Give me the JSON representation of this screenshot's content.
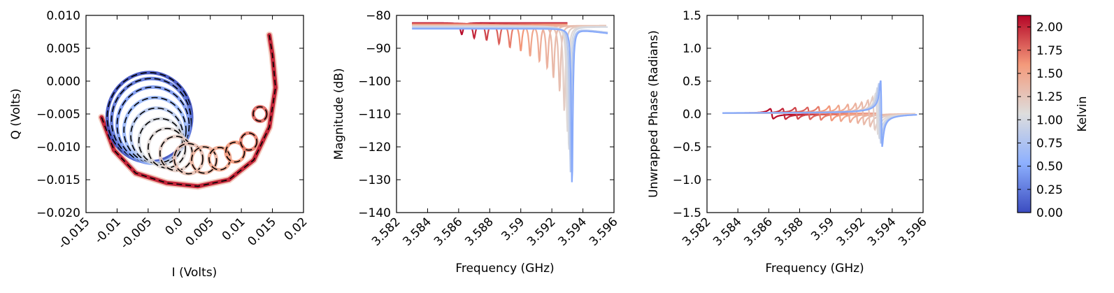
{
  "chart_data": [
    {
      "type": "scatter",
      "subtype": "iq-resonance-circles",
      "xlabel": "I (Volts)",
      "ylabel": "Q (Volts)",
      "xlim": [
        -0.015,
        0.02
      ],
      "ylim": [
        -0.02,
        0.01
      ],
      "xticks": [
        -0.015,
        -0.01,
        -0.005,
        0.0,
        0.005,
        0.01,
        0.015,
        0.02
      ],
      "xtick_labels": [
        "-0.015",
        "-0.01",
        "-0.005",
        "0.0",
        "0.005",
        "0.01",
        "0.015",
        "0.02"
      ],
      "yticks": [
        -0.02,
        -0.015,
        -0.01,
        -0.005,
        0.0,
        0.005,
        0.01
      ],
      "ytick_labels": [
        "−0.020",
        "−0.015",
        "−0.010",
        "−0.005",
        "0.000",
        "0.005",
        "0.010"
      ],
      "circles": [
        {
          "cx": -0.0048,
          "cy": -0.0055,
          "r": 0.0068,
          "t": 0.0
        },
        {
          "cx": -0.0045,
          "cy": -0.006,
          "r": 0.0064,
          "t": 0.2
        },
        {
          "cx": -0.0042,
          "cy": -0.0067,
          "r": 0.0058,
          "t": 0.4
        },
        {
          "cx": -0.0039,
          "cy": -0.0075,
          "r": 0.005,
          "t": 0.6
        },
        {
          "cx": -0.0036,
          "cy": -0.0083,
          "r": 0.0042,
          "t": 0.8
        },
        {
          "cx": -0.003,
          "cy": -0.0092,
          "r": 0.0035,
          "t": 1.0
        },
        {
          "cx": -0.002,
          "cy": -0.0102,
          "r": 0.003,
          "t": 1.1
        },
        {
          "cx": -0.0005,
          "cy": -0.011,
          "r": 0.0026,
          "t": 1.2
        },
        {
          "cx": 0.0015,
          "cy": -0.0118,
          "r": 0.0023,
          "t": 1.3
        },
        {
          "cx": 0.004,
          "cy": -0.012,
          "r": 0.002,
          "t": 1.4
        },
        {
          "cx": 0.0065,
          "cy": -0.0118,
          "r": 0.0017,
          "t": 1.5
        },
        {
          "cx": 0.009,
          "cy": -0.0108,
          "r": 0.0015,
          "t": 1.6
        },
        {
          "cx": 0.0112,
          "cy": -0.0092,
          "r": 0.0013,
          "t": 1.7
        },
        {
          "cx": 0.013,
          "cy": -0.005,
          "r": 0.0011,
          "t": 1.8
        }
      ],
      "spiral_arc": [
        [
          -0.0125,
          -0.0055
        ],
        [
          -0.0105,
          -0.0105
        ],
        [
          -0.007,
          -0.014
        ],
        [
          -0.002,
          -0.0155
        ],
        [
          0.003,
          -0.016
        ],
        [
          0.008,
          -0.015
        ],
        [
          0.012,
          -0.012
        ],
        [
          0.0145,
          -0.007
        ],
        [
          0.0155,
          -0.001
        ],
        [
          0.015,
          0.004
        ],
        [
          0.0145,
          0.007
        ]
      ]
    },
    {
      "type": "line",
      "xlabel": "Frequency (GHz)",
      "ylabel": "Magnitude (dB)",
      "xlim": [
        3.582,
        3.596
      ],
      "ylim": [
        -140,
        -80
      ],
      "xticks": [
        3.582,
        3.584,
        3.586,
        3.588,
        3.59,
        3.592,
        3.594,
        3.596
      ],
      "xtick_labels": [
        "3.582",
        "3.584",
        "3.586",
        "3.588",
        "3.59",
        "3.592",
        "3.594",
        "3.596"
      ],
      "yticks": [
        -140,
        -130,
        -120,
        -110,
        -100,
        -90,
        -80
      ],
      "ytick_labels": [
        "−140",
        "−130",
        "−120",
        "−110",
        "−100",
        "−90",
        "−80"
      ],
      "resonances": [
        {
          "f0": 3.5862,
          "depth": 3.5,
          "t": 2.1
        },
        {
          "f0": 3.587,
          "depth": 4.5,
          "t": 2.0
        },
        {
          "f0": 3.5878,
          "depth": 5.0,
          "t": 1.9
        },
        {
          "f0": 3.5886,
          "depth": 6.0,
          "t": 1.8
        },
        {
          "f0": 3.5893,
          "depth": 7.0,
          "t": 1.7
        },
        {
          "f0": 3.59,
          "depth": 8.0,
          "t": 1.6
        },
        {
          "f0": 3.5906,
          "depth": 9.5,
          "t": 1.5
        },
        {
          "f0": 3.5912,
          "depth": 11.0,
          "t": 1.45
        },
        {
          "f0": 3.5917,
          "depth": 13.0,
          "t": 1.4
        },
        {
          "f0": 3.5921,
          "depth": 16.0,
          "t": 1.35
        },
        {
          "f0": 3.5925,
          "depth": 20.0,
          "t": 1.3
        },
        {
          "f0": 3.5928,
          "depth": 26.0,
          "t": 1.2
        },
        {
          "f0": 3.593,
          "depth": 32.0,
          "t": 1.1
        },
        {
          "f0": 3.5931,
          "depth": 38.0,
          "t": 1.0
        },
        {
          "f0": 3.5932,
          "depth": 44.0,
          "t": 0.8
        },
        {
          "f0": 3.5933,
          "depth": 48.0,
          "t": 0.5
        }
      ]
    },
    {
      "type": "line",
      "xlabel": "Frequency (GHz)",
      "ylabel": "Unwrapped Phase (Radians)",
      "xlim": [
        3.582,
        3.596
      ],
      "ylim": [
        -1.5,
        1.5
      ],
      "xticks": [
        3.582,
        3.584,
        3.586,
        3.588,
        3.59,
        3.592,
        3.594,
        3.596
      ],
      "xtick_labels": [
        "3.582",
        "3.584",
        "3.586",
        "3.588",
        "3.59",
        "3.592",
        "3.594",
        "3.596"
      ],
      "yticks": [
        -1.5,
        -1.0,
        -0.5,
        0.0,
        0.5,
        1.0,
        1.5
      ],
      "ytick_labels": [
        "−1.5",
        "−1.0",
        "−0.5",
        "0.0",
        "0.5",
        "1.0",
        "1.5"
      ],
      "resonances": [
        {
          "f0": 3.5862,
          "amp": 0.15,
          "t": 2.1
        },
        {
          "f0": 3.587,
          "amp": 0.16,
          "t": 2.0
        },
        {
          "f0": 3.5878,
          "amp": 0.17,
          "t": 1.9
        },
        {
          "f0": 3.5886,
          "amp": 0.18,
          "t": 1.8
        },
        {
          "f0": 3.5893,
          "amp": 0.2,
          "t": 1.7
        },
        {
          "f0": 3.59,
          "amp": 0.22,
          "t": 1.6
        },
        {
          "f0": 3.5906,
          "amp": 0.24,
          "t": 1.5
        },
        {
          "f0": 3.5912,
          "amp": 0.27,
          "t": 1.45
        },
        {
          "f0": 3.5917,
          "amp": 0.3,
          "t": 1.4
        },
        {
          "f0": 3.5921,
          "amp": 0.34,
          "t": 1.35
        },
        {
          "f0": 3.5925,
          "amp": 0.4,
          "t": 1.3
        },
        {
          "f0": 3.5928,
          "amp": 0.5,
          "t": 1.2
        },
        {
          "f0": 3.593,
          "amp": 0.62,
          "t": 1.1
        },
        {
          "f0": 3.5931,
          "amp": 0.78,
          "t": 1.0
        },
        {
          "f0": 3.5932,
          "amp": 0.92,
          "t": 0.8
        },
        {
          "f0": 3.5933,
          "amp": 1.02,
          "t": 0.5
        }
      ]
    }
  ],
  "colorbar": {
    "label": "Kelvin",
    "colormap": "coolwarm",
    "range": [
      0.0,
      2.125
    ],
    "ticks": [
      0.0,
      0.25,
      0.5,
      0.75,
      1.0,
      1.25,
      1.5,
      1.75,
      2.0
    ],
    "tick_labels": [
      "0.00",
      "0.25",
      "0.50",
      "0.75",
      "1.00",
      "1.25",
      "1.50",
      "1.75",
      "2.00"
    ],
    "colors": {
      "low": "#3b4cc0",
      "mid": "#dddddd",
      "high": "#b40426"
    }
  }
}
